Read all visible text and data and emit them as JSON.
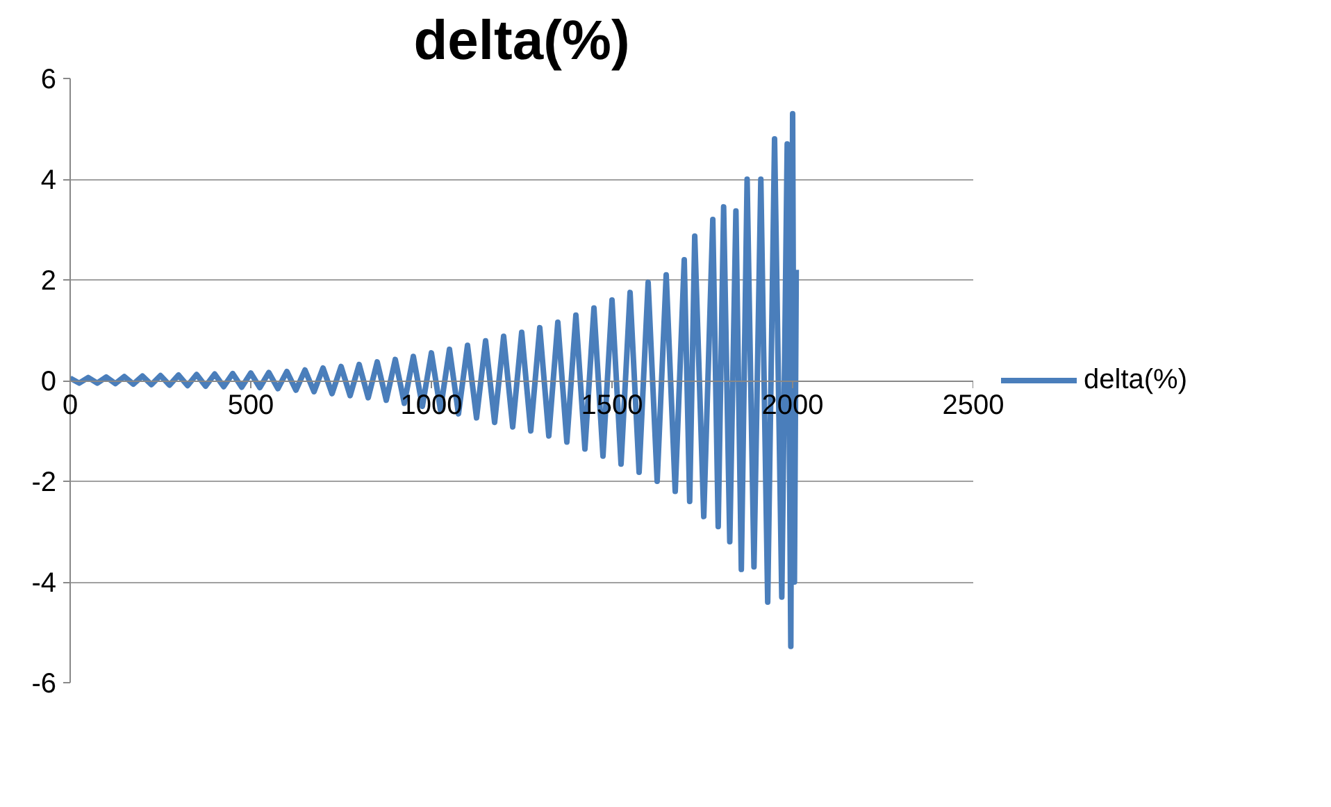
{
  "chart_data": {
    "type": "line",
    "title": "delta(%)",
    "xlim": [
      0,
      2500
    ],
    "xticks": [
      0,
      500,
      1000,
      1500,
      2000,
      2500
    ],
    "ylim": [
      -6,
      6
    ],
    "yticks": [
      -6,
      -4,
      -2,
      0,
      2,
      4,
      6
    ],
    "grid": "y",
    "legend": "right",
    "marker": "none",
    "line_style": "solid",
    "series": [
      {
        "name": "delta(%)",
        "color": "#4a7ebb",
        "x": [
          0,
          25,
          50,
          75,
          100,
          125,
          150,
          175,
          200,
          225,
          250,
          275,
          300,
          325,
          350,
          375,
          400,
          425,
          450,
          475,
          500,
          525,
          550,
          575,
          600,
          625,
          650,
          675,
          700,
          725,
          750,
          775,
          800,
          825,
          850,
          875,
          900,
          925,
          950,
          975,
          1000,
          1025,
          1050,
          1075,
          1100,
          1125,
          1150,
          1175,
          1200,
          1225,
          1250,
          1275,
          1300,
          1325,
          1350,
          1375,
          1400,
          1425,
          1450,
          1475,
          1500,
          1525,
          1550,
          1575,
          1600,
          1625,
          1650,
          1675,
          1700,
          1715,
          1729,
          1754,
          1779,
          1794,
          1809,
          1826,
          1843,
          1858,
          1874,
          1893,
          1912,
          1931,
          1950,
          1970,
          1985,
          1995,
          2000,
          2005,
          2010
        ],
        "values": [
          0.05,
          -0.05,
          0.06,
          -0.05,
          0.07,
          -0.06,
          0.08,
          -0.07,
          0.09,
          -0.08,
          0.1,
          -0.09,
          0.11,
          -0.1,
          0.12,
          -0.11,
          0.13,
          -0.12,
          0.14,
          -0.13,
          0.15,
          -0.14,
          0.16,
          -0.16,
          0.18,
          -0.19,
          0.21,
          -0.22,
          0.25,
          -0.26,
          0.28,
          -0.3,
          0.32,
          -0.34,
          0.37,
          -0.39,
          0.42,
          -0.45,
          0.48,
          -0.51,
          0.55,
          -0.58,
          0.62,
          -0.66,
          0.7,
          -0.74,
          0.79,
          -0.83,
          0.88,
          -0.92,
          0.96,
          -1.0,
          1.05,
          -1.1,
          1.16,
          -1.22,
          1.3,
          -1.36,
          1.44,
          -1.5,
          1.6,
          -1.66,
          1.75,
          -1.82,
          1.95,
          -2.0,
          2.1,
          -2.2,
          2.4,
          -2.4,
          2.87,
          -2.7,
          3.2,
          -2.9,
          3.45,
          -3.2,
          3.37,
          -3.75,
          4.0,
          -3.7,
          4.0,
          -4.4,
          4.8,
          -4.3,
          4.7,
          -5.28,
          5.3,
          -4.0,
          2.2
        ]
      }
    ]
  }
}
